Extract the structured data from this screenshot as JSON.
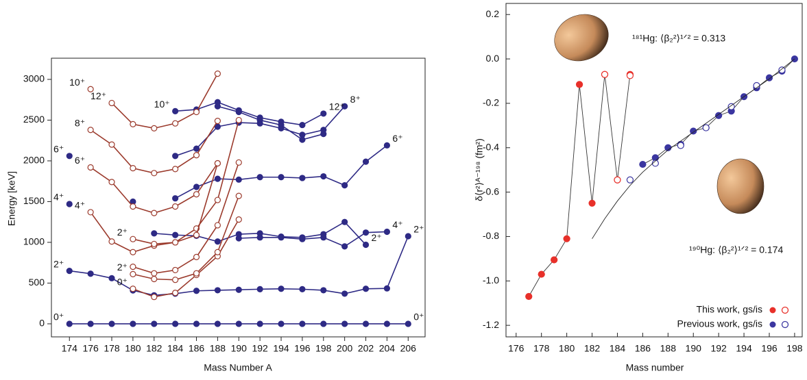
{
  "chart_data": [
    {
      "type": "line",
      "x_label": "Mass Number A",
      "y_label": "Energy [keV]",
      "xlim": [
        172.3,
        207.6
      ],
      "ylim": [
        -160,
        3260
      ],
      "xticks": [
        174,
        176,
        178,
        180,
        182,
        184,
        186,
        188,
        190,
        192,
        194,
        196,
        198,
        200,
        202,
        204,
        206
      ],
      "yticks": [
        0,
        500,
        1000,
        1500,
        2000,
        2500,
        3000
      ],
      "series": [
        {
          "color": "#2e2a85",
          "marker": "filled",
          "x": [
            174,
            176,
            178,
            180,
            182,
            184,
            186,
            188,
            190,
            192,
            194,
            196,
            198,
            200,
            202,
            204,
            206
          ],
          "values": [
            0,
            0,
            0,
            0,
            0,
            0,
            0,
            0,
            0,
            0,
            0,
            0,
            0,
            0,
            0,
            0,
            0
          ],
          "point_labels": [
            "0⁺",
            null,
            null,
            null,
            null,
            null,
            null,
            null,
            null,
            null,
            null,
            null,
            null,
            null,
            null,
            null,
            "0⁺"
          ]
        },
        {
          "color": "#2e2a85",
          "marker": "filled",
          "x": [
            174,
            176,
            178,
            180,
            182,
            184,
            186,
            188,
            190,
            192,
            194,
            196,
            198,
            200,
            202,
            204,
            206
          ],
          "values": [
            650,
            615,
            560,
            410,
            350,
            370,
            405,
            412,
            418,
            425,
            430,
            425,
            412,
            370,
            430,
            435,
            1075
          ],
          "point_labels": [
            "2⁺",
            null,
            null,
            null,
            null,
            null,
            null,
            null,
            null,
            null,
            null,
            null,
            null,
            null,
            null,
            null,
            "2⁺"
          ]
        },
        {
          "color": "#2e2a85",
          "marker": "filled",
          "x": [
            174
          ],
          "values": [
            1470
          ],
          "point_labels": [
            "4⁺"
          ]
        },
        {
          "color": "#2e2a85",
          "marker": "filled",
          "x": [
            174
          ],
          "values": [
            2060
          ],
          "point_labels": [
            "6⁺"
          ]
        },
        {
          "color": "#2e2a85",
          "marker": "filled",
          "x": [
            180
          ],
          "values": [
            1500
          ],
          "point_labels": [
            null
          ]
        },
        {
          "color": "#2e2a85",
          "marker": "filled",
          "x": [
            182,
            184,
            186,
            188,
            190,
            192,
            194,
            196,
            198,
            200,
            202
          ],
          "values": [
            1110,
            1090,
            1080,
            1010,
            1100,
            1110,
            1070,
            1060,
            1100,
            1250,
            970
          ],
          "point_labels": [
            null,
            null,
            null,
            null,
            null,
            null,
            null,
            null,
            null,
            null,
            "2⁺"
          ]
        },
        {
          "color": "#2e2a85",
          "marker": "filled",
          "x": [
            190,
            192,
            194,
            196,
            198,
            200,
            202,
            204
          ],
          "values": [
            1050,
            1060,
            1060,
            1040,
            1060,
            950,
            1120,
            1130
          ],
          "point_labels": [
            null,
            null,
            null,
            null,
            null,
            null,
            null,
            "4⁺"
          ]
        },
        {
          "color": "#2e2a85",
          "marker": "filled",
          "x": [
            184,
            186,
            188,
            190,
            192,
            194,
            196,
            198,
            200,
            202,
            204
          ],
          "values": [
            1540,
            1680,
            1780,
            1770,
            1800,
            1800,
            1790,
            1810,
            1700,
            1990,
            2190
          ],
          "point_labels": [
            null,
            null,
            null,
            null,
            null,
            null,
            null,
            null,
            null,
            null,
            "6⁺"
          ]
        },
        {
          "color": "#2e2a85",
          "marker": "filled",
          "x": [
            184,
            186,
            188,
            190,
            192,
            194,
            196,
            198,
            200
          ],
          "values": [
            2060,
            2150,
            2420,
            2470,
            2460,
            2400,
            2320,
            2380,
            2670
          ],
          "point_labels": [
            null,
            null,
            null,
            null,
            null,
            null,
            null,
            null,
            "8⁺"
          ]
        },
        {
          "color": "#2e2a85",
          "marker": "filled",
          "x": [
            188,
            190,
            192,
            194,
            196,
            198
          ],
          "values": [
            2670,
            2600,
            2500,
            2440,
            2260,
            2330
          ],
          "point_labels": [
            null,
            null,
            null,
            null,
            null,
            null
          ]
        },
        {
          "color": "#2e2a85",
          "marker": "filled",
          "x": [
            184,
            186,
            188,
            190,
            192,
            194,
            196,
            198
          ],
          "values": [
            2610,
            2630,
            2720,
            2620,
            2530,
            2480,
            2440,
            2580
          ],
          "point_labels": [
            "10⁺",
            null,
            null,
            null,
            null,
            null,
            null,
            "12⁺"
          ]
        },
        {
          "color": "#9b3a2c",
          "marker": "open",
          "x": [
            180,
            182,
            184,
            186,
            188,
            190
          ],
          "values": [
            430,
            330,
            380,
            600,
            830,
            1280
          ],
          "point_labels": [
            "0⁺",
            null,
            null,
            null,
            null,
            null
          ]
        },
        {
          "color": "#9b3a2c",
          "marker": "open",
          "x": [
            180,
            182,
            184,
            186,
            188,
            190
          ],
          "values": [
            610,
            550,
            540,
            620,
            880,
            1570
          ],
          "point_labels": [
            "2⁺",
            null,
            null,
            null,
            null,
            null
          ]
        },
        {
          "color": "#9b3a2c",
          "marker": "open",
          "x": [
            180,
            182,
            184,
            186,
            188,
            190
          ],
          "values": [
            700,
            620,
            660,
            820,
            1210,
            1980
          ],
          "point_labels": [
            null,
            null,
            null,
            null,
            null,
            null
          ]
        },
        {
          "color": "#9b3a2c",
          "marker": "open",
          "x": [
            176,
            178,
            180,
            182,
            184,
            186,
            188,
            190
          ],
          "values": [
            1370,
            1010,
            880,
            960,
            1000,
            1170,
            1520,
            2500
          ],
          "point_labels": [
            "4⁺",
            null,
            null,
            null,
            null,
            null,
            null,
            null
          ]
        },
        {
          "color": "#9b3a2c",
          "marker": "open",
          "x": [
            180,
            182,
            184,
            186,
            188
          ],
          "values": [
            1040,
            980,
            1000,
            1090,
            1970
          ],
          "point_labels": [
            "2⁺",
            null,
            null,
            null,
            null
          ]
        },
        {
          "color": "#9b3a2c",
          "marker": "open",
          "x": [
            176,
            178,
            180,
            182,
            184,
            186,
            188
          ],
          "values": [
            1920,
            1740,
            1440,
            1360,
            1440,
            1590,
            1970
          ],
          "point_labels": [
            "6⁺",
            null,
            null,
            null,
            null,
            null,
            null
          ]
        },
        {
          "color": "#9b3a2c",
          "marker": "open",
          "x": [
            176,
            178,
            180,
            182,
            184,
            186,
            188
          ],
          "values": [
            2380,
            2200,
            1910,
            1850,
            1900,
            2070,
            2490
          ],
          "point_labels": [
            "8⁺",
            null,
            null,
            null,
            null,
            null,
            null
          ]
        },
        {
          "color": "#9b3a2c",
          "marker": "open",
          "x": [
            178,
            180,
            182,
            184,
            186,
            188
          ],
          "values": [
            2710,
            2450,
            2400,
            2460,
            2600,
            3070
          ],
          "point_labels": [
            "12⁺",
            null,
            null,
            null,
            null,
            null
          ]
        },
        {
          "color": "#9b3a2c",
          "marker": "open",
          "x": [
            176
          ],
          "values": [
            2880
          ],
          "point_labels": [
            "10⁺"
          ]
        }
      ]
    },
    {
      "type": "scatter",
      "x_label": "Mass number",
      "y_label": "δ⟨r²⟩ᴬ⁻¹⁹⁸ (fm²)",
      "xlim": [
        175.2,
        198.6
      ],
      "ylim": [
        -1.252,
        0.25
      ],
      "xticks": [
        176,
        178,
        180,
        182,
        184,
        186,
        188,
        190,
        192,
        194,
        196,
        198
      ],
      "yticks": [
        0.2,
        {
          "value": 0,
          "label": "0.0"
        },
        -0.2,
        -0.4,
        -0.6,
        -0.8,
        {
          "value": -1,
          "label": "-1.0"
        },
        -1.2
      ],
      "annotations": [
        "¹⁸¹Hg: ⟨β₂²⟩¹ᐟ² = 0.313",
        "¹⁹⁰Hg: ⟨β₂²⟩¹ᐟ² = 0.174"
      ],
      "legend": [
        "This work, gs/is",
        "Previous work, gs/is"
      ],
      "series": [
        {
          "color": "#e8302a",
          "marker": "filled",
          "x": [
            177,
            178,
            179,
            180,
            181,
            182,
            183,
            184,
            185
          ],
          "values": [
            -1.07,
            -0.97,
            -0.905,
            -0.81,
            -0.115,
            -0.65,
            -0.07,
            -0.545,
            -0.07
          ]
        },
        {
          "color": "#e8302a",
          "marker": "open",
          "x": [
            183,
            184,
            185
          ],
          "values": [
            -0.07,
            -0.545,
            -0.075
          ]
        },
        {
          "color": "#3b36a0",
          "marker": "filled",
          "x": [
            186,
            187,
            188,
            189,
            190,
            191,
            192,
            193,
            194,
            195,
            196,
            197,
            198
          ],
          "values": [
            -0.475,
            -0.445,
            -0.4,
            -0.385,
            -0.325,
            -0.31,
            -0.255,
            -0.235,
            -0.17,
            -0.13,
            -0.085,
            -0.055,
            0
          ]
        },
        {
          "color": "#3b36a0",
          "marker": "open",
          "x": [
            185,
            187,
            189,
            191,
            193,
            195,
            197
          ],
          "values": [
            -0.545,
            -0.47,
            -0.39,
            -0.31,
            -0.215,
            -0.12,
            -0.05
          ]
        },
        {
          "color": "#222222",
          "marker": "none",
          "x": [
            182,
            183,
            184,
            185,
            186,
            187,
            188,
            190,
            192,
            194,
            196,
            198
          ],
          "values": [
            -0.81,
            -0.72,
            -0.64,
            -0.57,
            -0.51,
            -0.46,
            -0.41,
            -0.33,
            -0.25,
            -0.17,
            -0.09,
            0
          ]
        }
      ]
    }
  ]
}
